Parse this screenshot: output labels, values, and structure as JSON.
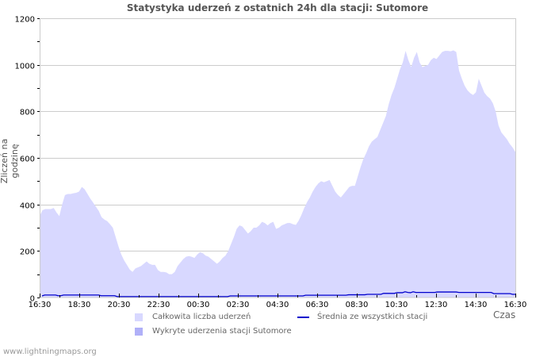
{
  "chart_data": {
    "type": "area",
    "title": "Statystyka uderzeń z ostatnich 24h dla stacji: Sutomore",
    "xlabel": "Czas",
    "ylabel": "Zliczeń na godzinę",
    "ylim": [
      0,
      1200
    ],
    "y_ticks": [
      0,
      200,
      400,
      600,
      800,
      1000,
      1200
    ],
    "x_ticks": [
      "16:30",
      "18:30",
      "20:30",
      "22:30",
      "00:30",
      "02:30",
      "04:30",
      "06:30",
      "08:30",
      "10:30",
      "12:30",
      "14:30",
      "16:30"
    ],
    "grid": true,
    "legend_position": "bottom",
    "x_interval_minutes": 10,
    "series": [
      {
        "name": "Całkowita liczba uderzeń",
        "type": "area",
        "color": "#d8d8ff",
        "values": [
          350,
          375,
          380,
          380,
          380,
          385,
          365,
          350,
          400,
          440,
          445,
          445,
          448,
          450,
          455,
          475,
          465,
          445,
          425,
          408,
          390,
          372,
          345,
          335,
          328,
          315,
          300,
          260,
          220,
          185,
          160,
          140,
          120,
          110,
          125,
          130,
          135,
          145,
          155,
          145,
          140,
          140,
          118,
          110,
          110,
          108,
          100,
          100,
          110,
          135,
          150,
          165,
          175,
          178,
          175,
          170,
          185,
          195,
          190,
          180,
          175,
          165,
          155,
          145,
          155,
          170,
          180,
          200,
          230,
          260,
          295,
          310,
          305,
          290,
          275,
          285,
          300,
          300,
          310,
          325,
          320,
          310,
          320,
          325,
          295,
          300,
          310,
          315,
          320,
          320,
          315,
          312,
          330,
          355,
          385,
          410,
          430,
          455,
          475,
          490,
          500,
          495,
          500,
          505,
          480,
          455,
          440,
          430,
          445,
          460,
          475,
          480,
          480,
          520,
          560,
          595,
          620,
          650,
          670,
          680,
          690,
          720,
          750,
          780,
          830,
          870,
          900,
          940,
          980,
          1010,
          1060,
          1020,
          990,
          1030,
          1055,
          1010,
          990,
          995,
          1000,
          1020,
          1030,
          1025,
          1040,
          1055,
          1060,
          1060,
          1058,
          1062,
          1055,
          975,
          940,
          910,
          890,
          878,
          870,
          882,
          940,
          910,
          880,
          865,
          855,
          835,
          800,
          740,
          710,
          695,
          680,
          660,
          645,
          625
        ]
      },
      {
        "name": "Wykryte uderzenia stacji Sutomore",
        "type": "area",
        "color": "#b0b0f8",
        "values": []
      },
      {
        "name": "Średnia ze wszystkich stacji",
        "type": "line",
        "color": "#0000cc",
        "values": [
          5,
          9,
          9,
          9,
          9,
          9,
          6,
          6,
          9,
          9,
          9,
          9,
          9,
          9,
          9,
          9,
          9,
          9,
          9,
          9,
          9,
          9,
          6,
          6,
          6,
          6,
          6,
          6,
          2,
          2,
          2,
          2,
          2,
          2,
          2,
          2,
          2,
          2,
          2,
          2,
          2,
          2,
          2,
          2,
          2,
          2,
          2,
          2,
          2,
          2,
          2,
          2,
          2,
          2,
          2,
          2,
          2,
          2,
          2,
          2,
          2,
          2,
          2,
          2,
          2,
          2,
          2,
          2,
          2,
          2,
          5,
          5,
          5,
          5,
          5,
          5,
          5,
          5,
          5,
          5,
          5,
          5,
          5,
          5,
          5,
          5,
          5,
          5,
          5,
          5,
          5,
          5,
          5,
          5,
          5,
          5,
          5,
          5,
          8,
          8,
          8,
          8,
          8,
          8,
          8,
          8,
          8,
          8,
          8,
          8,
          8,
          8,
          8,
          8,
          10,
          10,
          10,
          10,
          10,
          10,
          10,
          12,
          12,
          12,
          12,
          12,
          12,
          16,
          16,
          16,
          16,
          16,
          19,
          19,
          19,
          23,
          20,
          19,
          23,
          20,
          20,
          20,
          20,
          20,
          20,
          20,
          20,
          22,
          22,
          22,
          22,
          22,
          22,
          22,
          22,
          20,
          20,
          20,
          20,
          20,
          20,
          20,
          20,
          20,
          20,
          20,
          20,
          20,
          15,
          15,
          15,
          15,
          15,
          15,
          15,
          12,
          12
        ]
      }
    ]
  },
  "header": {
    "title": "Statystyka uderzeń z ostatnich 24h dla stacji: Sutomore"
  },
  "axes": {
    "ylabel": "Zliczeń na godzinę",
    "xlabel": "Czas"
  },
  "legend": {
    "items": [
      {
        "label": "Całkowita liczba uderzeń",
        "color": "#d8d8ff"
      },
      {
        "label": "Wykryte uderzenia stacji Sutomore",
        "color": "#b0b0f8"
      },
      {
        "label": "Średnia ze wszystkich stacji",
        "color": "#0000cc"
      }
    ]
  },
  "footer": {
    "site": "www.lightningmaps.org"
  },
  "colors": {
    "grid": "#cccccc",
    "frame": "#cccccc",
    "tick_text": "#000000",
    "axis_label": "#555555"
  }
}
